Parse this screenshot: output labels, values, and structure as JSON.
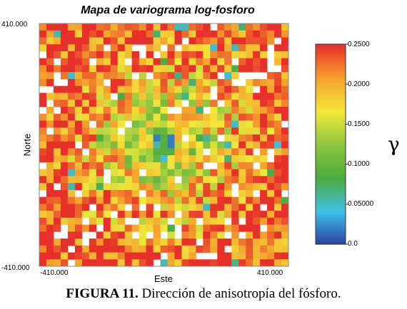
{
  "chart_data": {
    "type": "heatmap",
    "title": "Mapa de variograma log-fosforo",
    "xlabel": "Este",
    "ylabel": "Norte",
    "x_ticks": [
      "-410.000",
      "410.000"
    ],
    "y_ticks": [
      "410.000",
      "-410.000"
    ],
    "colorbar": {
      "label": "γ",
      "ticks": [
        "0.2500",
        "0.2000",
        "0.1500",
        "0.1000",
        "0.05000",
        "0.0"
      ],
      "range": [
        0,
        0.25
      ],
      "colors": [
        "#2b3fa0",
        "#3fc1e8",
        "#4caa3c",
        "#8dc63f",
        "#f2e83a",
        "#f4a22d",
        "#e8302a"
      ]
    },
    "grid_size": [
      35,
      35
    ],
    "missing_fraction": 0.12,
    "center_low": true,
    "description_note": ""
  },
  "caption": {
    "bold": "FIGURA 11.",
    "text": " Dirección de anisotropía del fósforo."
  }
}
